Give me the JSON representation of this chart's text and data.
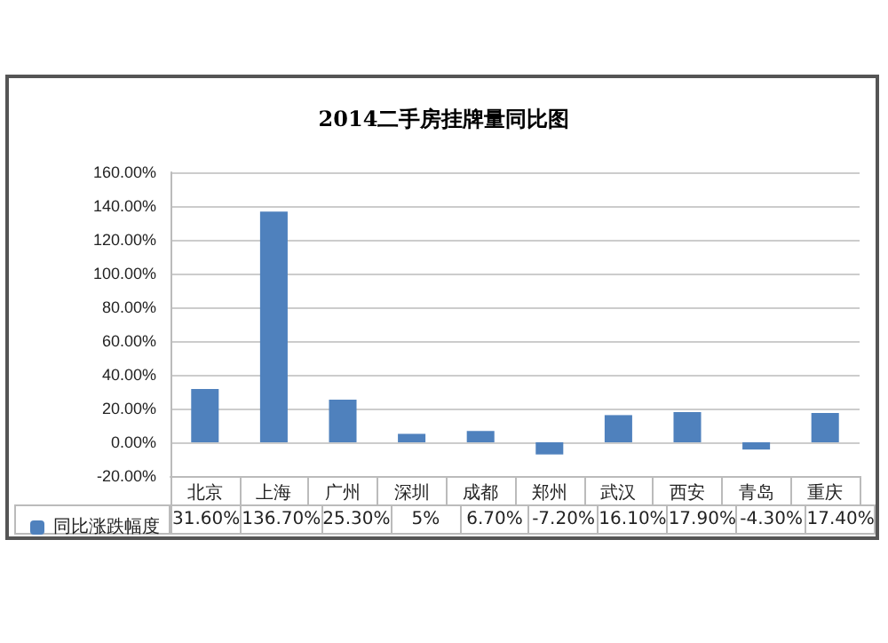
{
  "chart_data": {
    "type": "bar",
    "title": "2014二手房挂牌量同比图",
    "categories": [
      "北京",
      "上海",
      "广州",
      "深圳",
      "成都",
      "郑州",
      "武汉",
      "西安",
      "青岛",
      "重庆"
    ],
    "series": [
      {
        "name": "同比涨跌幅度",
        "color": "#4f81bd",
        "values": [
          31.6,
          136.7,
          25.3,
          5,
          6.7,
          -7.2,
          16.1,
          17.9,
          -4.3,
          17.4
        ],
        "value_labels": [
          "31.60%",
          "136.70%",
          "25.30%",
          "5%",
          "6.70%",
          "-7.20%",
          "16.10%",
          "17.90%",
          "-4.30%",
          "17.40%"
        ]
      }
    ],
    "ylim": [
      -20,
      160
    ],
    "yticks": [
      {
        "value": -20,
        "label": "-20.00%"
      },
      {
        "value": 0,
        "label": "0.00%"
      },
      {
        "value": 20,
        "label": "20.00%"
      },
      {
        "value": 40,
        "label": "40.00%"
      },
      {
        "value": 60,
        "label": "60.00%"
      },
      {
        "value": 80,
        "label": "80.00%"
      },
      {
        "value": 100,
        "label": "100.00%"
      },
      {
        "value": 120,
        "label": "120.00%"
      },
      {
        "value": 140,
        "label": "140.00%"
      },
      {
        "value": 160,
        "label": "160.00%"
      }
    ],
    "grid": "y",
    "legend": "bottom left"
  }
}
